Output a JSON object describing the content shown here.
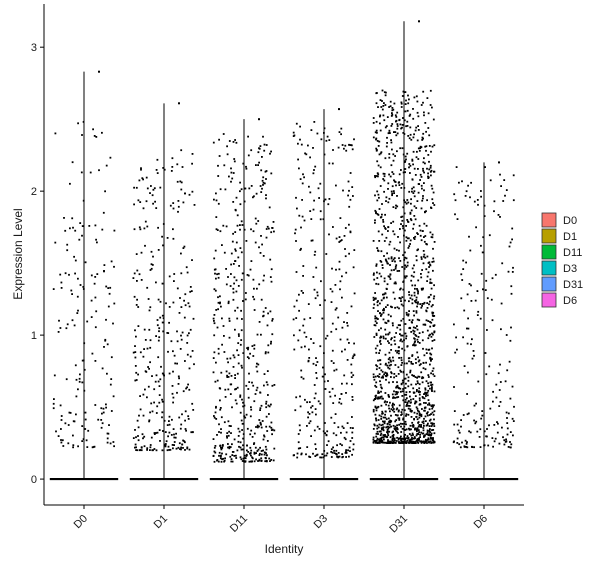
{
  "chart_data": {
    "type": "violin-jitter",
    "title": "",
    "xlabel": "Identity",
    "ylabel": "Expression Level",
    "ylim": [
      -0.18,
      3.3
    ],
    "yticks": [
      0,
      1,
      2,
      3
    ],
    "ytick_labels": [
      "0",
      "1",
      "2",
      "3"
    ],
    "categories": [
      "D0",
      "D1",
      "D11",
      "D3",
      "D31",
      "D6"
    ],
    "series": [
      {
        "name": "D0",
        "color": "#F8766D",
        "max": 2.83,
        "nonzero_points": 170,
        "jitter_ymin": 0.22,
        "jitter_ymax": 2.5
      },
      {
        "name": "D1",
        "color": "#B79F00",
        "max": 2.61,
        "nonzero_points": 330,
        "jitter_ymin": 0.2,
        "jitter_ymax": 2.3
      },
      {
        "name": "D11",
        "color": "#00BA38",
        "max": 2.5,
        "nonzero_points": 520,
        "jitter_ymin": 0.12,
        "jitter_ymax": 2.4
      },
      {
        "name": "D3",
        "color": "#00BFC4",
        "max": 2.57,
        "nonzero_points": 350,
        "jitter_ymin": 0.15,
        "jitter_ymax": 2.5
      },
      {
        "name": "D31",
        "color": "#619CFF",
        "max": 3.18,
        "nonzero_points": 1500,
        "jitter_ymin": 0.25,
        "jitter_ymax": 2.7
      },
      {
        "name": "D6",
        "color": "#F564E3",
        "max": 2.2,
        "nonzero_points": 200,
        "jitter_ymin": 0.22,
        "jitter_ymax": 2.2
      }
    ],
    "legend": {
      "position": "right",
      "entries": [
        "D0",
        "D1",
        "D11",
        "D3",
        "D31",
        "D6"
      ]
    },
    "grid": false,
    "x_tick_rotation_deg": 45
  }
}
